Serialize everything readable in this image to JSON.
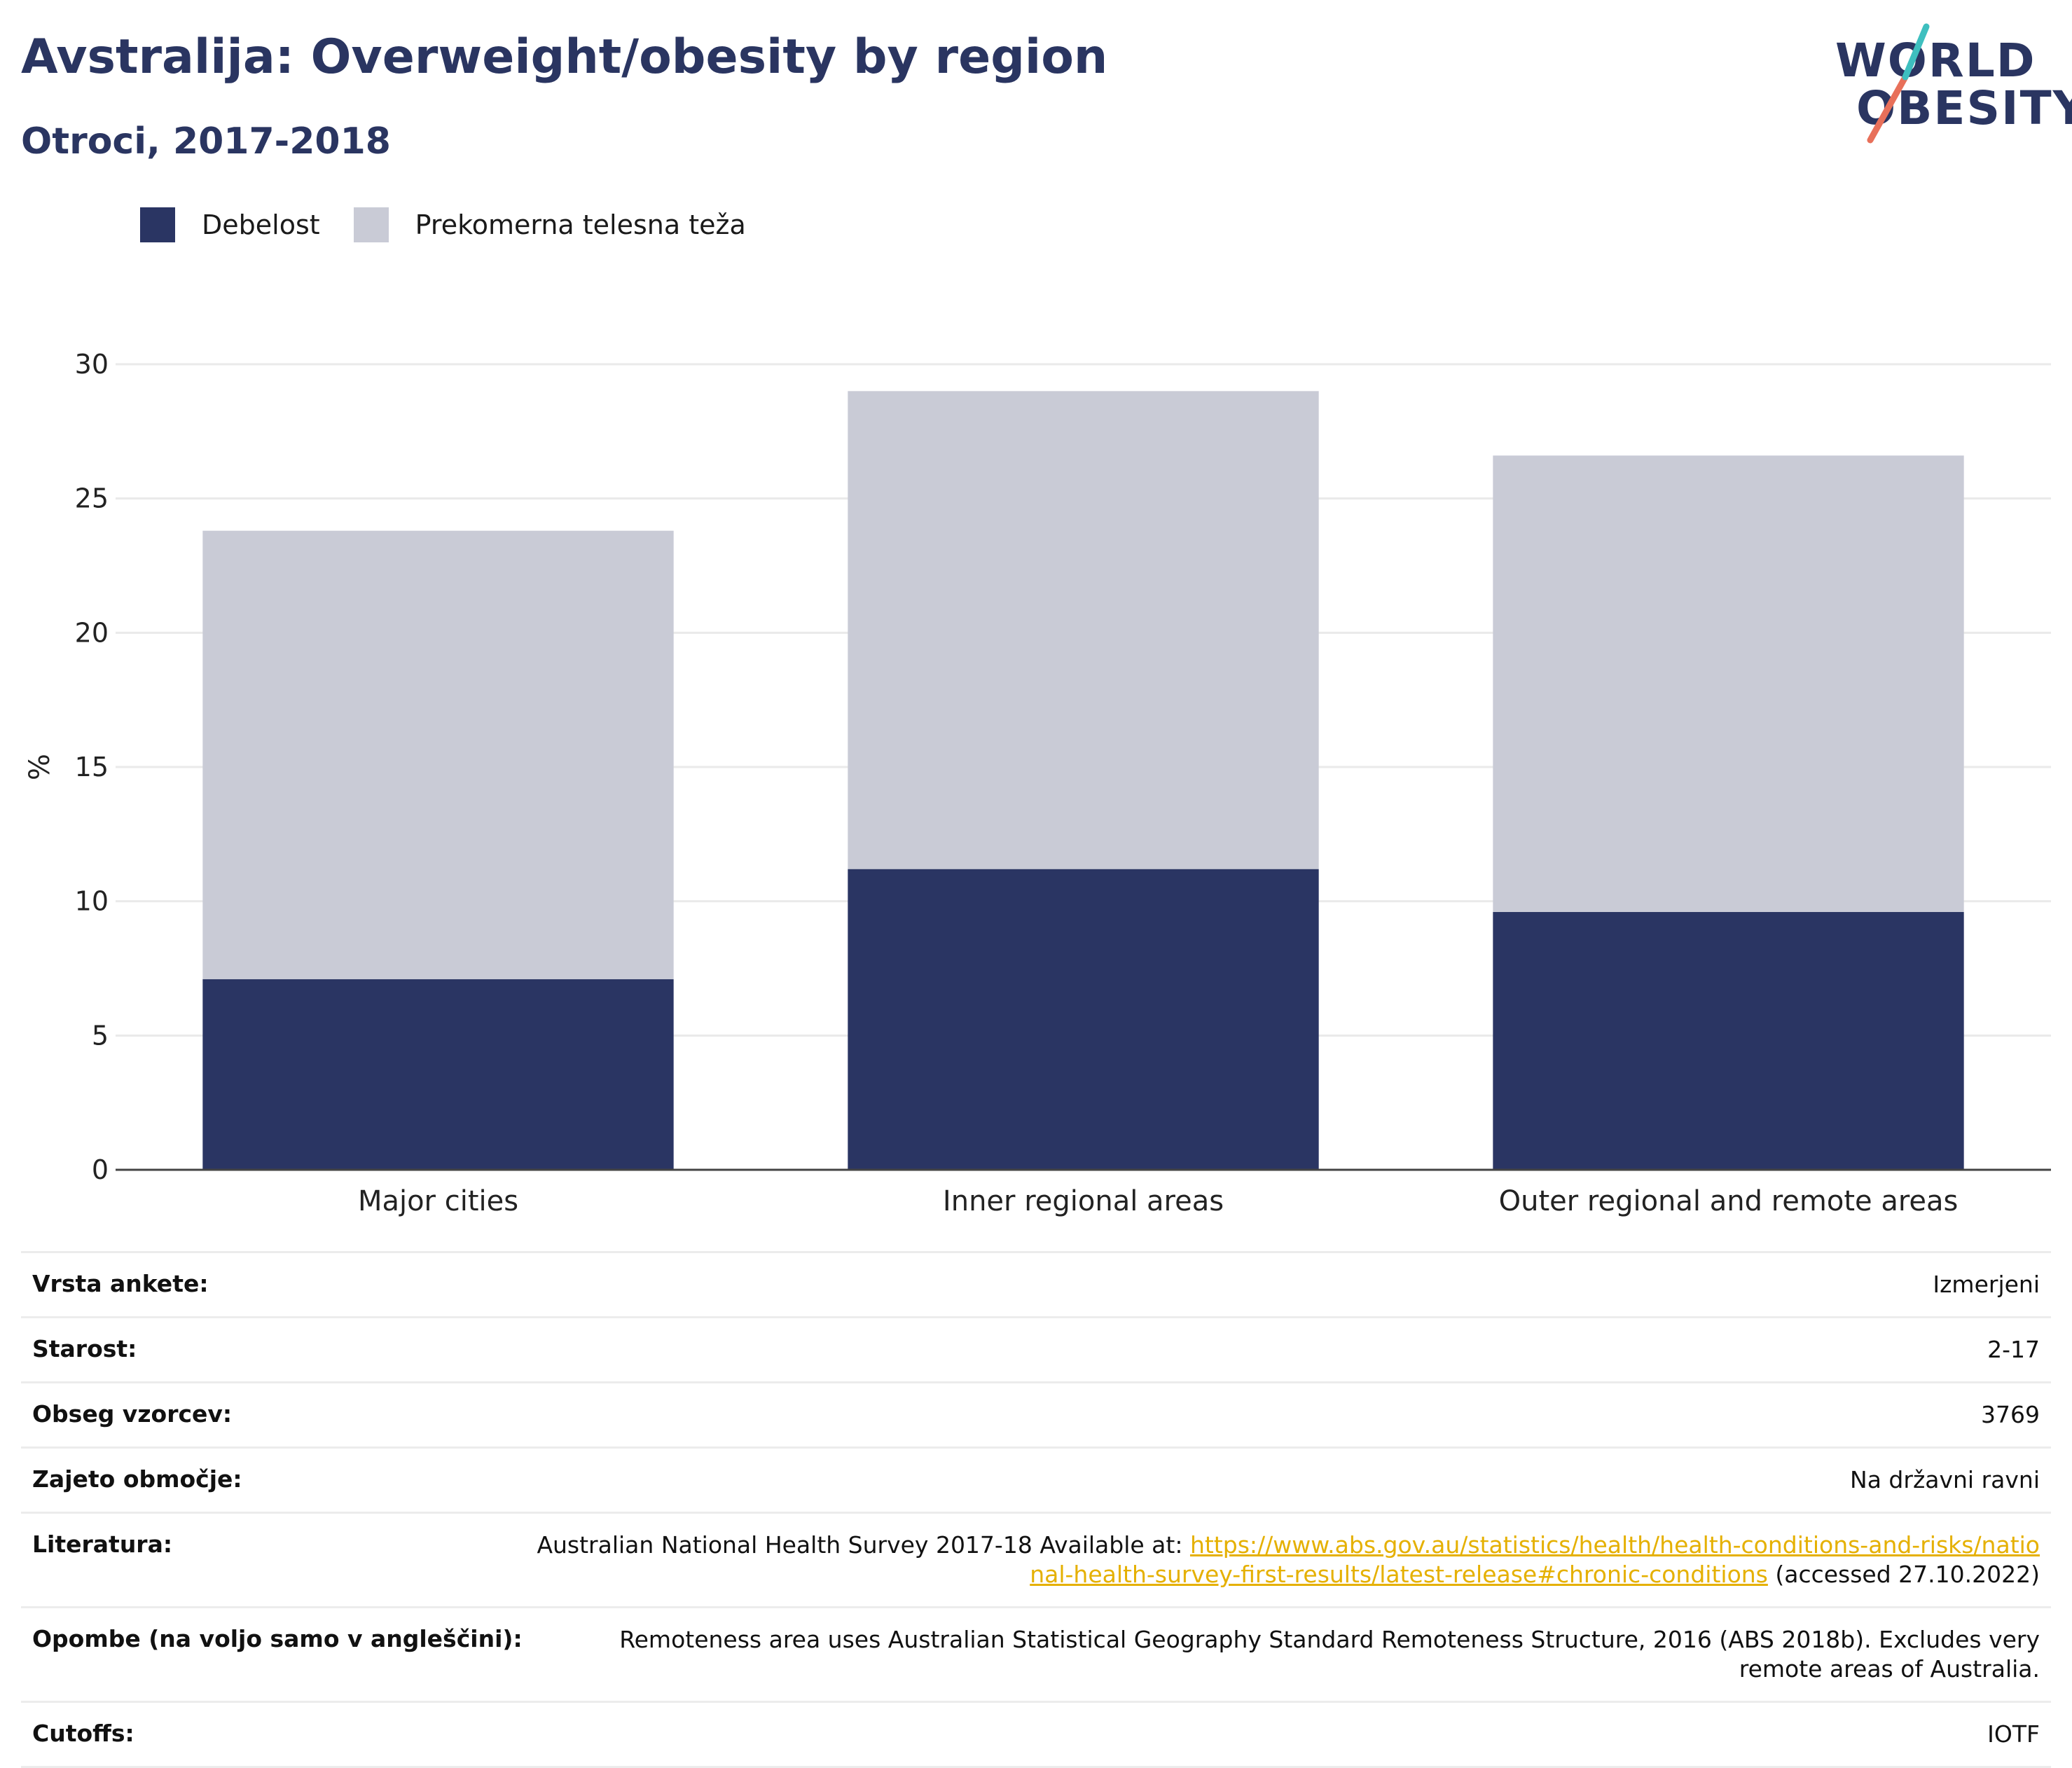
{
  "header": {
    "title": "Avstralija: Overweight/obesity by region",
    "subtitle": "Otroci, 2017-2018"
  },
  "logo": {
    "line1": "WORLD",
    "line2": "OBESITY",
    "accent_teal": "#3ebfbf",
    "accent_coral": "#e8705a"
  },
  "colors": {
    "obesity": "#2a3563",
    "overweight": "#c9cbd6",
    "grid": "#eaeaea",
    "axis": "#444444",
    "title": "#2a3561",
    "link": "#e5b000"
  },
  "chart_data": {
    "type": "bar",
    "stacked": true,
    "categories": [
      "Major cities",
      "Inner regional areas",
      "Outer regional and remote areas"
    ],
    "series": [
      {
        "name": "Debelost",
        "values": [
          7.1,
          11.2,
          9.6
        ]
      },
      {
        "name": "Prekomerna telesna teža",
        "values": [
          16.7,
          17.8,
          17.0
        ]
      }
    ],
    "totals": [
      23.8,
      29.0,
      26.6
    ],
    "ylabel": "%",
    "xlabel": "",
    "ylim": [
      0,
      30
    ],
    "yticks": [
      0,
      5,
      10,
      15,
      20,
      25,
      30
    ],
    "grid": true,
    "legend_position": "top-left"
  },
  "metadata": {
    "rows": [
      {
        "key": "Vrsta ankete:",
        "value": "Izmerjeni"
      },
      {
        "key": "Starost:",
        "value": "2-17"
      },
      {
        "key": "Obseg vzorcev:",
        "value": "3769"
      },
      {
        "key": "Zajeto območje:",
        "value": "Na državni ravni"
      },
      {
        "key": "Literatura:",
        "value_prefix": "Australian National Health Survey 2017-18 Available at: ",
        "link_text": "https://www.abs.gov.au/statistics/health/health-conditions-and-risks/national-health-survey-first-results/latest-release#chronic-conditions",
        "value_suffix": " (accessed 27.10.2022)"
      },
      {
        "key": "Opombe (na voljo samo v angleščini):",
        "value": "Remoteness area uses Australian Statistical Geography Standard Remoteness Structure, 2016 (ABS 2018b). Excludes very remote areas of Australia."
      },
      {
        "key": "Cutoffs:",
        "value": "IOTF"
      }
    ]
  }
}
